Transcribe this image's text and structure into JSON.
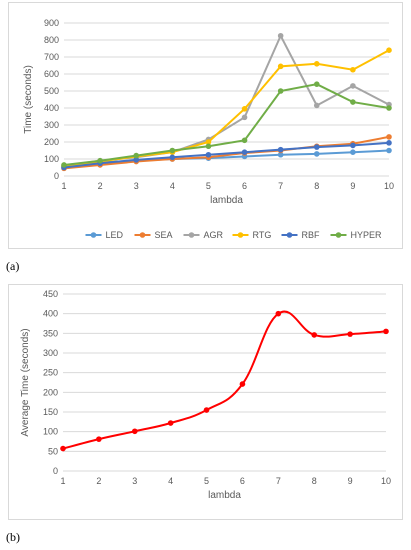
{
  "panels": {
    "a": {
      "label": "(a)"
    },
    "b": {
      "label": "(b)"
    }
  },
  "chart_data": [
    {
      "type": "line",
      "x": [
        1,
        2,
        3,
        4,
        5,
        6,
        7,
        8,
        9,
        10
      ],
      "xlabel": "lambda",
      "ylabel": "Time (seconds)",
      "ylim": [
        0,
        900
      ],
      "yticks": [
        0,
        100,
        200,
        300,
        400,
        500,
        600,
        700,
        800,
        900
      ],
      "grid": true,
      "legend": "bottom",
      "series": [
        {
          "name": "LED",
          "color": "#5b9bd5",
          "values": [
            55,
            80,
            90,
            100,
            105,
            115,
            125,
            130,
            140,
            150
          ]
        },
        {
          "name": "SEA",
          "color": "#ed7d31",
          "values": [
            45,
            65,
            85,
            100,
            110,
            135,
            150,
            175,
            190,
            230
          ]
        },
        {
          "name": "AGR",
          "color": "#a5a5a5",
          "values": [
            60,
            90,
            110,
            140,
            215,
            345,
            825,
            415,
            530,
            420
          ]
        },
        {
          "name": "RTG",
          "color": "#ffc000",
          "values": [
            55,
            85,
            115,
            140,
            200,
            395,
            645,
            660,
            625,
            740
          ]
        },
        {
          "name": "RBF",
          "color": "#4472c4",
          "values": [
            50,
            75,
            95,
            110,
            125,
            140,
            155,
            170,
            180,
            195
          ]
        },
        {
          "name": "HYPER",
          "color": "#70ad47",
          "values": [
            65,
            90,
            120,
            150,
            175,
            210,
            500,
            540,
            435,
            400
          ]
        }
      ]
    },
    {
      "type": "line",
      "x": [
        1,
        2,
        3,
        4,
        5,
        6,
        7,
        8,
        9,
        10
      ],
      "xlabel": "lambda",
      "ylabel": "Average Time (seconds)",
      "ylim": [
        0,
        450
      ],
      "yticks": [
        0,
        50,
        100,
        150,
        200,
        250,
        300,
        350,
        400,
        450
      ],
      "grid": true,
      "series": [
        {
          "name": "",
          "color": "#ff0000",
          "values": [
            57,
            81,
            101,
            122,
            155,
            221,
            400,
            346,
            348,
            355
          ]
        }
      ]
    }
  ]
}
